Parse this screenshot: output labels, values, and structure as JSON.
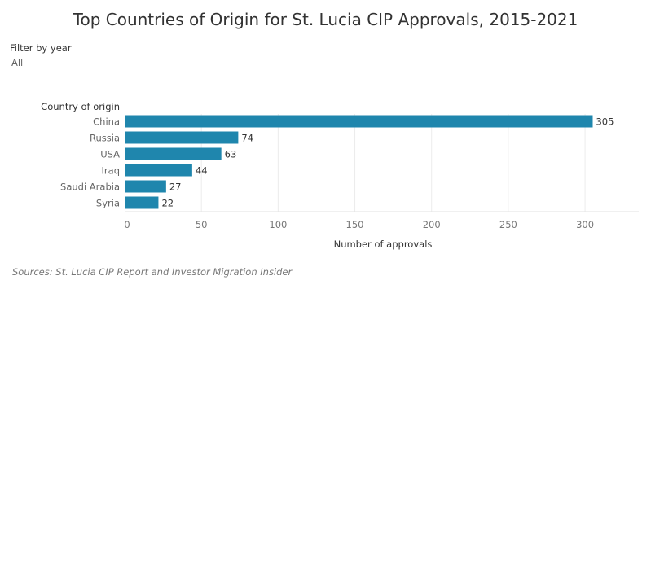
{
  "filter": {
    "label": "Filter by year",
    "value": "All"
  },
  "source": "Sources: St. Lucia CIP Report and Investor Migration Insider",
  "chart_data": {
    "type": "bar",
    "orientation": "horizontal",
    "title": "Top Countries of Origin for St. Lucia CIP Approvals, 2015-2021",
    "category_axis_title": "Country of origin",
    "xlabel": "Number of approvals",
    "ylabel": "",
    "categories": [
      "China",
      "Russia",
      "USA",
      "Iraq",
      "Saudi Arabia",
      "Syria"
    ],
    "values": [
      305,
      74,
      63,
      44,
      27,
      22
    ],
    "xlim": [
      0,
      335
    ],
    "xticks": [
      0,
      50,
      100,
      150,
      200,
      250,
      300
    ],
    "grid": true,
    "bar_color": "#1f86ad"
  }
}
